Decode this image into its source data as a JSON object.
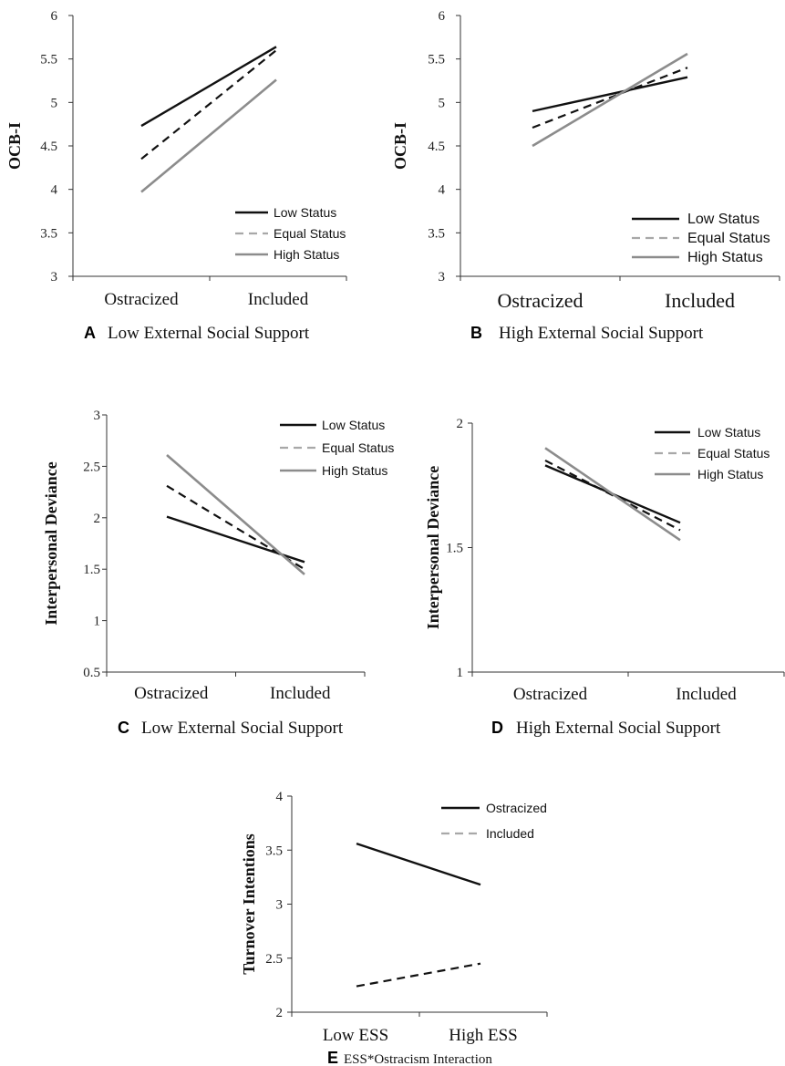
{
  "colors": {
    "low": "#111111",
    "equal": "#111111",
    "high": "#8c8c8c",
    "equal_legend": "#a8a8a8",
    "axis": "#333333"
  },
  "chart_data": [
    {
      "type": "line",
      "panel": "A",
      "caption": "Low External Social Support",
      "ylabel": "OCB-I",
      "categories": [
        "Ostracized",
        "Included"
      ],
      "ylim": [
        3,
        6
      ],
      "yticks": [
        "3",
        "3.5",
        "4",
        "4.5",
        "5",
        "5.5",
        "6"
      ],
      "legend_position": "bottom-right",
      "series": [
        {
          "name": "Low Status",
          "values": [
            4.73,
            5.64
          ],
          "style": "solid-dark"
        },
        {
          "name": "Equal Status",
          "values": [
            4.35,
            5.6
          ],
          "style": "dashed"
        },
        {
          "name": "High Status",
          "values": [
            3.97,
            5.26
          ],
          "style": "solid-gray"
        }
      ]
    },
    {
      "type": "line",
      "panel": "B",
      "caption": "High External Social Support",
      "ylabel": "OCB-I",
      "categories": [
        "Ostracized",
        "Included"
      ],
      "ylim": [
        3,
        6
      ],
      "yticks": [
        "3",
        "3.5",
        "4",
        "4.5",
        "5",
        "5.5",
        "6"
      ],
      "legend_position": "bottom-right",
      "series": [
        {
          "name": "Low Status",
          "values": [
            4.9,
            5.29
          ],
          "style": "solid-dark"
        },
        {
          "name": "Equal Status",
          "values": [
            4.71,
            5.4
          ],
          "style": "dashed"
        },
        {
          "name": "High Status",
          "values": [
            4.5,
            5.56
          ],
          "style": "solid-gray"
        }
      ]
    },
    {
      "type": "line",
      "panel": "C",
      "caption": "Low External Social Support",
      "ylabel": "Interpersonal Deviance",
      "categories": [
        "Ostracized",
        "Included"
      ],
      "ylim": [
        0.5,
        3
      ],
      "yticks": [
        "0.5",
        "1",
        "1.5",
        "2",
        "2.5",
        "3"
      ],
      "legend_position": "top-right",
      "series": [
        {
          "name": "Low Status",
          "values": [
            2.01,
            1.57
          ],
          "style": "solid-dark"
        },
        {
          "name": "Equal Status",
          "values": [
            2.31,
            1.5
          ],
          "style": "dashed"
        },
        {
          "name": "High Status",
          "values": [
            2.61,
            1.45
          ],
          "style": "solid-gray"
        }
      ]
    },
    {
      "type": "line",
      "panel": "D",
      "caption": "High External Social Support",
      "ylabel": "Interpersonal Deviance",
      "categories": [
        "Ostracized",
        "Included"
      ],
      "ylim": [
        1,
        2
      ],
      "yticks": [
        "1",
        "1.5",
        "2"
      ],
      "legend_position": "top-right",
      "series": [
        {
          "name": "Low Status",
          "values": [
            1.83,
            1.6
          ],
          "style": "solid-dark"
        },
        {
          "name": "Equal Status",
          "values": [
            1.85,
            1.57
          ],
          "style": "dashed"
        },
        {
          "name": "High Status",
          "values": [
            1.9,
            1.53
          ],
          "style": "solid-gray"
        }
      ]
    },
    {
      "type": "line",
      "panel": "E",
      "caption": "ESS*Ostracism Interaction",
      "ylabel": "Turnover Intentions",
      "categories": [
        "Low ESS",
        "High ESS"
      ],
      "ylim": [
        2,
        4
      ],
      "yticks": [
        "2",
        "2.5",
        "3",
        "3.5",
        "4"
      ],
      "legend_position": "top-right",
      "series": [
        {
          "name": "Ostracized",
          "values": [
            3.56,
            3.18
          ],
          "style": "solid-dark"
        },
        {
          "name": "Included",
          "values": [
            2.24,
            2.45
          ],
          "style": "dashed"
        }
      ]
    }
  ]
}
